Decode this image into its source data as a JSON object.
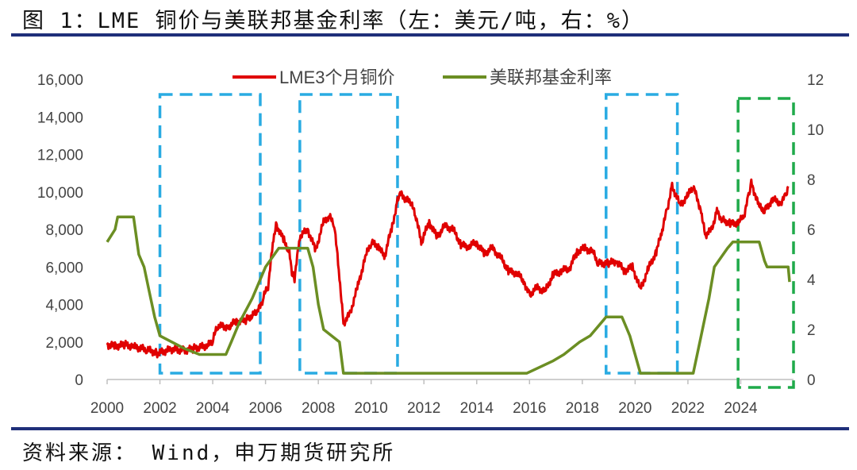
{
  "figure": {
    "title": "图 1：LME 铜价与美联邦基金利率（左：美元/吨，右：%）",
    "source": "资料来源：  Wind，申万期货研究所"
  },
  "chart_data": {
    "type": "line",
    "x_ticks": [
      "2000",
      "2002",
      "2004",
      "2006",
      "2008",
      "2010",
      "2012",
      "2014",
      "2016",
      "2018",
      "2020",
      "2022",
      "2024"
    ],
    "y_left": {
      "ticks": [
        "0",
        "2,000",
        "4,000",
        "6,000",
        "8,000",
        "10,000",
        "12,000",
        "14,000",
        "16,000"
      ],
      "range": [
        0,
        16000
      ],
      "unit": "美元/吨"
    },
    "y_right": {
      "ticks": [
        "0",
        "2",
        "4",
        "6",
        "8",
        "10",
        "12"
      ],
      "range": [
        0,
        12
      ],
      "unit": "%"
    },
    "x_range": [
      2000,
      2026
    ],
    "legend_position": "top-center",
    "colors": {
      "copper": "#e00000",
      "rate": "#6b8e23",
      "box_blue": "#29abe2",
      "box_green": "#1faa4a"
    },
    "series": [
      {
        "name": "LME3个月铜价",
        "axis": "left",
        "points": [
          [
            2000.0,
            1850
          ],
          [
            2000.3,
            1780
          ],
          [
            2000.7,
            1850
          ],
          [
            2001.0,
            1750
          ],
          [
            2001.5,
            1600
          ],
          [
            2001.9,
            1400
          ],
          [
            2002.4,
            1600
          ],
          [
            2002.9,
            1550
          ],
          [
            2003.3,
            1650
          ],
          [
            2003.8,
            1800
          ],
          [
            2004.0,
            2100
          ],
          [
            2004.2,
            2900
          ],
          [
            2004.6,
            2800
          ],
          [
            2004.9,
            3100
          ],
          [
            2005.3,
            3200
          ],
          [
            2005.7,
            3600
          ],
          [
            2005.9,
            4300
          ],
          [
            2006.1,
            5000
          ],
          [
            2006.3,
            7500
          ],
          [
            2006.4,
            8300
          ],
          [
            2006.7,
            7400
          ],
          [
            2006.9,
            6800
          ],
          [
            2007.0,
            5600
          ],
          [
            2007.1,
            5400
          ],
          [
            2007.3,
            7600
          ],
          [
            2007.6,
            8000
          ],
          [
            2007.9,
            6900
          ],
          [
            2008.2,
            8400
          ],
          [
            2008.4,
            8700
          ],
          [
            2008.6,
            8300
          ],
          [
            2008.8,
            5500
          ],
          [
            2008.95,
            3000
          ],
          [
            2009.2,
            3500
          ],
          [
            2009.5,
            5000
          ],
          [
            2009.8,
            6600
          ],
          [
            2010.0,
            7300
          ],
          [
            2010.3,
            7100
          ],
          [
            2010.5,
            6500
          ],
          [
            2010.8,
            8200
          ],
          [
            2011.0,
            9500
          ],
          [
            2011.1,
            9900
          ],
          [
            2011.5,
            9400
          ],
          [
            2011.7,
            8700
          ],
          [
            2011.9,
            7300
          ],
          [
            2012.2,
            8400
          ],
          [
            2012.5,
            7600
          ],
          [
            2012.8,
            8200
          ],
          [
            2013.1,
            8000
          ],
          [
            2013.4,
            7200
          ],
          [
            2013.7,
            7100
          ],
          [
            2014.0,
            7300
          ],
          [
            2014.3,
            6700
          ],
          [
            2014.6,
            7000
          ],
          [
            2014.9,
            6500
          ],
          [
            2015.2,
            5800
          ],
          [
            2015.5,
            5700
          ],
          [
            2015.8,
            5200
          ],
          [
            2016.0,
            4500
          ],
          [
            2016.3,
            4900
          ],
          [
            2016.6,
            4700
          ],
          [
            2016.9,
            5600
          ],
          [
            2017.2,
            5800
          ],
          [
            2017.5,
            5900
          ],
          [
            2017.8,
            6800
          ],
          [
            2018.1,
            7000
          ],
          [
            2018.4,
            6800
          ],
          [
            2018.6,
            6200
          ],
          [
            2019.0,
            6200
          ],
          [
            2019.3,
            6300
          ],
          [
            2019.6,
            5800
          ],
          [
            2019.9,
            6000
          ],
          [
            2020.2,
            4800
          ],
          [
            2020.5,
            5900
          ],
          [
            2020.8,
            6800
          ],
          [
            2021.0,
            7800
          ],
          [
            2021.2,
            9000
          ],
          [
            2021.4,
            10300
          ],
          [
            2021.7,
            9300
          ],
          [
            2022.0,
            9800
          ],
          [
            2022.2,
            10300
          ],
          [
            2022.5,
            9000
          ],
          [
            2022.65,
            7700
          ],
          [
            2022.9,
            8000
          ],
          [
            2023.1,
            9000
          ],
          [
            2023.3,
            8500
          ],
          [
            2023.6,
            8300
          ],
          [
            2023.9,
            8400
          ],
          [
            2024.1,
            8600
          ],
          [
            2024.3,
            9800
          ],
          [
            2024.4,
            10500
          ],
          [
            2024.7,
            9200
          ],
          [
            2024.9,
            9000
          ],
          [
            2025.2,
            9600
          ],
          [
            2025.5,
            9400
          ],
          [
            2025.7,
            9800
          ],
          [
            2025.8,
            10300
          ]
        ]
      },
      {
        "name": "美联邦基金利率",
        "axis": "right",
        "points": [
          [
            2000.0,
            5.5
          ],
          [
            2000.3,
            6.0
          ],
          [
            2000.4,
            6.5
          ],
          [
            2001.0,
            6.5
          ],
          [
            2001.2,
            5.0
          ],
          [
            2001.4,
            4.5
          ],
          [
            2001.6,
            3.5
          ],
          [
            2001.8,
            2.5
          ],
          [
            2002.0,
            1.75
          ],
          [
            2002.9,
            1.25
          ],
          [
            2003.5,
            1.0
          ],
          [
            2004.5,
            1.0
          ],
          [
            2004.7,
            1.5
          ],
          [
            2005.0,
            2.25
          ],
          [
            2005.5,
            3.25
          ],
          [
            2006.0,
            4.5
          ],
          [
            2006.5,
            5.25
          ],
          [
            2007.6,
            5.25
          ],
          [
            2007.8,
            4.5
          ],
          [
            2008.0,
            3.0
          ],
          [
            2008.2,
            2.0
          ],
          [
            2008.8,
            1.5
          ],
          [
            2008.95,
            0.25
          ],
          [
            2015.9,
            0.25
          ],
          [
            2016.9,
            0.75
          ],
          [
            2017.3,
            1.0
          ],
          [
            2017.9,
            1.5
          ],
          [
            2018.3,
            1.75
          ],
          [
            2018.9,
            2.5
          ],
          [
            2019.5,
            2.5
          ],
          [
            2019.7,
            2.0
          ],
          [
            2019.8,
            1.75
          ],
          [
            2020.2,
            0.25
          ],
          [
            2022.2,
            0.25
          ],
          [
            2022.5,
            1.75
          ],
          [
            2022.8,
            3.25
          ],
          [
            2023.0,
            4.5
          ],
          [
            2023.5,
            5.25
          ],
          [
            2023.7,
            5.5
          ],
          [
            2024.7,
            5.5
          ],
          [
            2024.9,
            4.75
          ],
          [
            2025.0,
            4.5
          ],
          [
            2025.8,
            4.5
          ],
          [
            2025.85,
            3.9
          ]
        ]
      }
    ],
    "highlight_boxes": [
      {
        "x": [
          2002.0,
          2005.8
        ],
        "color": "blue",
        "style": "dashed"
      },
      {
        "x": [
          2007.3,
          2011.0
        ],
        "color": "blue",
        "style": "dashed"
      },
      {
        "x": [
          2018.9,
          2021.6
        ],
        "color": "blue",
        "style": "dashed"
      },
      {
        "x": [
          2023.9,
          2026.0
        ],
        "color": "green",
        "style": "dashed"
      }
    ]
  }
}
